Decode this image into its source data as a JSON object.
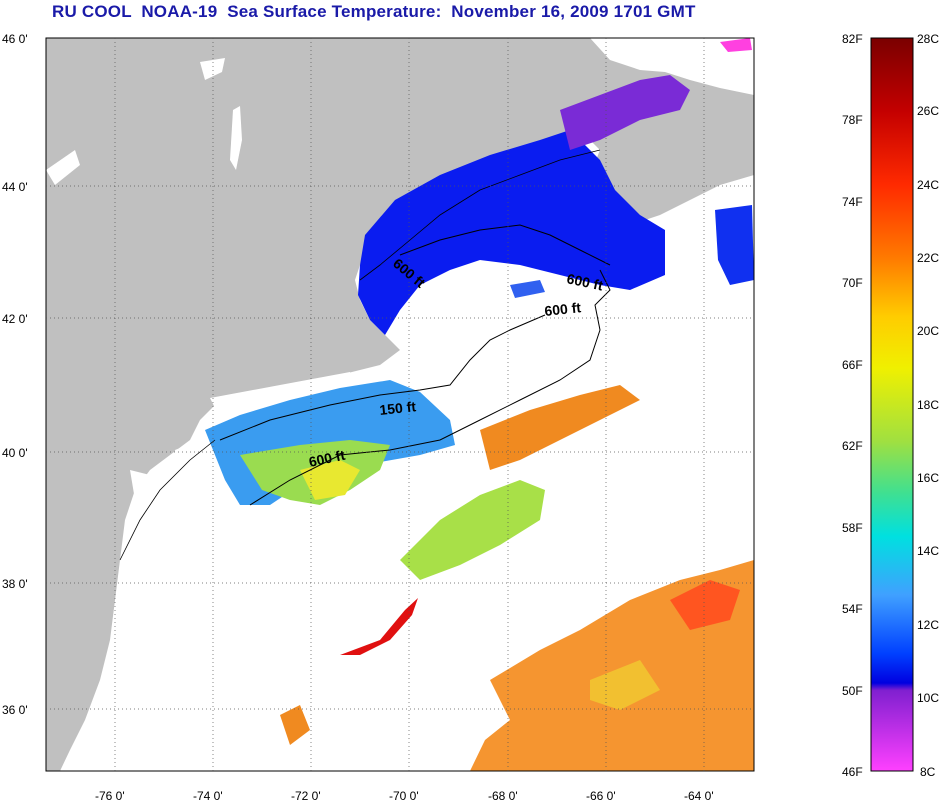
{
  "title": "RU COOL  NOAA-19  Sea Surface Temperature:  November 16, 2009 1701 GMT",
  "latitude_labels": [
    "46 0'",
    "44 0'",
    "42 0'",
    "40 0'",
    "38 0'",
    "36 0'"
  ],
  "longitude_labels": [
    "-76 0'",
    "-74 0'",
    "-72 0'",
    "-70 0'",
    "-68 0'",
    "-66 0'",
    "-64 0'"
  ],
  "contour_labels": [
    "600 ft",
    "600 ft",
    "600 ft",
    "150 ft",
    "600 ft"
  ],
  "colorbar": {
    "fahrenheit_labels": [
      "82F",
      "78F",
      "74F",
      "70F",
      "66F",
      "62F",
      "58F",
      "54F",
      "50F",
      "46F"
    ],
    "celsius_labels": [
      "28C",
      "26C",
      "24C",
      "22C",
      "20C",
      "18C",
      "16C",
      "14C",
      "12C",
      "10C",
      "8C"
    ],
    "colors": [
      "#7a0000",
      "#c40000",
      "#ff2a00",
      "#ff7a00",
      "#ffcc00",
      "#f0f000",
      "#a0e040",
      "#40e090",
      "#00e0e0",
      "#40a0ff",
      "#0040ff",
      "#0000e0",
      "#8020d0",
      "#ff40ff"
    ]
  },
  "colors": {
    "land": "#c0c0c0",
    "ocean": "#ffffff",
    "title": "#1a1aa8"
  }
}
